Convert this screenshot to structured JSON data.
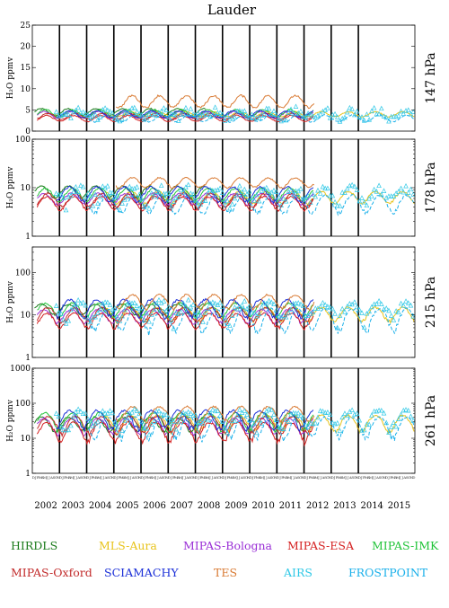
{
  "chart_data": {
    "type": "line",
    "title": "Lauder",
    "years": [
      "2002",
      "2003",
      "2004",
      "2005",
      "2006",
      "2007",
      "2008",
      "2009",
      "2010",
      "2011",
      "2012",
      "2013",
      "2014",
      "2015"
    ],
    "month_initials": [
      "D",
      "J",
      "F",
      "M",
      "A",
      "M",
      "J",
      "J",
      "A",
      "S",
      "O",
      "N"
    ],
    "panels": [
      {
        "pressure_label": "147 hPa",
        "ylabel": "H₂O ppmv",
        "scale": "linear",
        "ylim": [
          0,
          25
        ],
        "ticks": [
          "0",
          "5",
          "10",
          "15",
          "20",
          "25"
        ]
      },
      {
        "pressure_label": "178 hPa",
        "ylabel": "H₂O ppmv",
        "scale": "log",
        "ylim": [
          1,
          100
        ],
        "ticks": [
          "1",
          "10",
          "100"
        ]
      },
      {
        "pressure_label": "215 hPa",
        "ylabel": "H₂O ppmv",
        "scale": "log",
        "ylim": [
          1,
          400
        ],
        "ticks": [
          "1",
          "10",
          "100"
        ]
      },
      {
        "pressure_label": "261 hPa",
        "ylabel": "H₂O ppmv",
        "scale": "log",
        "ylim": [
          1,
          1000
        ],
        "ticks": [
          "1",
          "10",
          "100",
          "1000"
        ]
      }
    ],
    "series": [
      {
        "name": "HIRDLS",
        "color": "#1a7a1a",
        "start": 2002.0,
        "end": 2008.3,
        "base": [
          4.5,
          8.5,
          14,
          28
        ],
        "amp": [
          0.8,
          2.2,
          4,
          12
        ],
        "phase": 0.0
      },
      {
        "name": "MLS-Aura",
        "color": "#e8c31a",
        "start": 2004.6,
        "end": 2016.0,
        "base": [
          4.0,
          6.5,
          11,
          30
        ],
        "amp": [
          0.6,
          1.8,
          4,
          15
        ],
        "phase": 0.3
      },
      {
        "name": "MIPAS-Bologna",
        "color": "#9a2fd6",
        "start": 2002.1,
        "end": 2012.3,
        "base": [
          3.8,
          6.0,
          10,
          25
        ],
        "amp": [
          0.8,
          1.6,
          3.5,
          12
        ],
        "phase": 0.1
      },
      {
        "name": "MIPAS-ESA",
        "color": "#d42020",
        "start": 2002.1,
        "end": 2012.3,
        "base": [
          3.0,
          5.0,
          8,
          18
        ],
        "amp": [
          0.7,
          1.5,
          3,
          10
        ],
        "phase": 0.2
      },
      {
        "name": "MIPAS-IMK",
        "color": "#22c43a",
        "start": 2002.1,
        "end": 2012.3,
        "base": [
          4.2,
          7.5,
          14,
          35
        ],
        "amp": [
          0.9,
          2.2,
          5,
          18
        ],
        "phase": 0.15
      },
      {
        "name": "MIPAS-Oxford",
        "color": "#c22b2b",
        "start": 2002.1,
        "end": 2012.3,
        "base": [
          3.5,
          5.8,
          11,
          28
        ],
        "amp": [
          0.7,
          1.8,
          4,
          14
        ],
        "phase": 0.25
      },
      {
        "name": "SCIAMACHY",
        "color": "#1c30d8",
        "start": 2002.8,
        "end": 2012.3,
        "base": [
          4.0,
          7.8,
          16,
          40
        ],
        "amp": [
          0.8,
          2.6,
          7,
          22
        ],
        "phase": 0.05
      },
      {
        "name": "TES",
        "color": "#d97a33",
        "start": 2005.0,
        "end": 2012.3,
        "base": [
          7.0,
          13.0,
          22,
          55
        ],
        "amp": [
          1.4,
          3.0,
          8,
          25
        ],
        "phase": 0.35
      },
      {
        "name": "AIRS",
        "color": "#2fc8e6",
        "start": 2002.8,
        "end": 2016.0,
        "base": [
          4.0,
          7.5,
          14,
          40
        ],
        "amp": [
          0.9,
          2.2,
          6,
          20
        ],
        "phase": 0.4
      },
      {
        "name": "FROSTPOINT",
        "color": "#1ab0ea",
        "start": 2004.0,
        "end": 2016.0,
        "base": [
          3.0,
          5.0,
          9,
          25
        ],
        "amp": [
          0.8,
          2.0,
          5,
          15
        ],
        "phase": 0.45
      }
    ]
  }
}
